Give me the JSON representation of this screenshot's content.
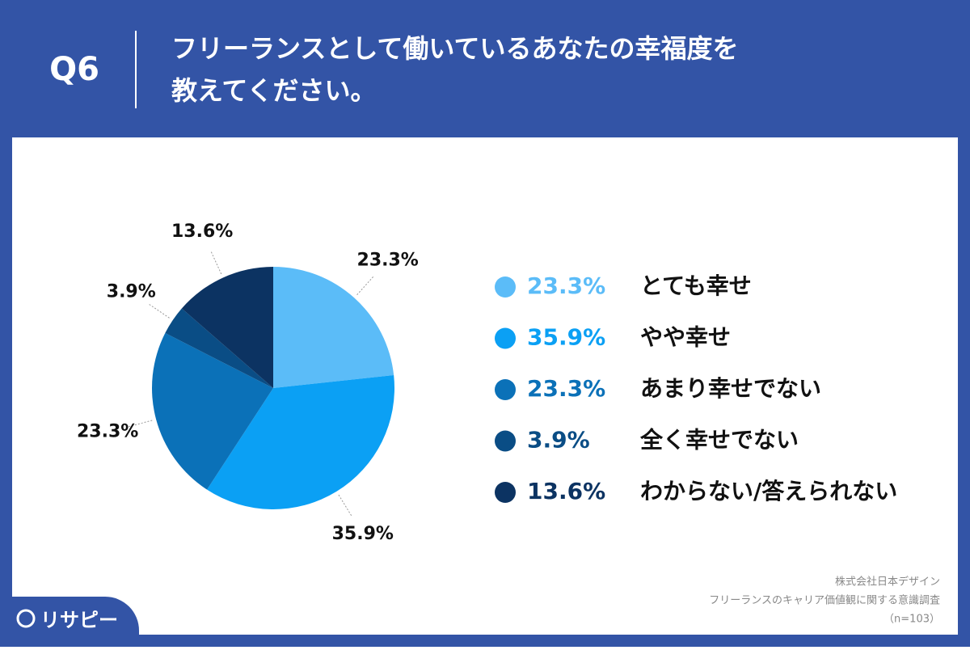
{
  "chart_data": {
    "type": "pie",
    "question": "Q6",
    "title": [
      "フリーランスとして働いているあなたの幸福度を",
      "教えてください。"
    ],
    "categories": [
      "とても幸せ",
      "やや幸せ",
      "あまり幸せでない",
      "全く幸せでない",
      "わからない/答えられない"
    ],
    "values": [
      23.3,
      35.9,
      23.3,
      3.9,
      13.6
    ],
    "value_labels": [
      "23.3%",
      "35.9%",
      "23.3%",
      "3.9%",
      "13.6%"
    ],
    "colors": [
      "#5bbcf8",
      "#0ba0f4",
      "#0b71b8",
      "#0a4d85",
      "#0c3362"
    ],
    "notes": [
      "株式会社日本デザイン",
      "フリーランスのキャリア価値観に関する意識調査",
      "（n=103）"
    ],
    "brand": "リサピー"
  }
}
